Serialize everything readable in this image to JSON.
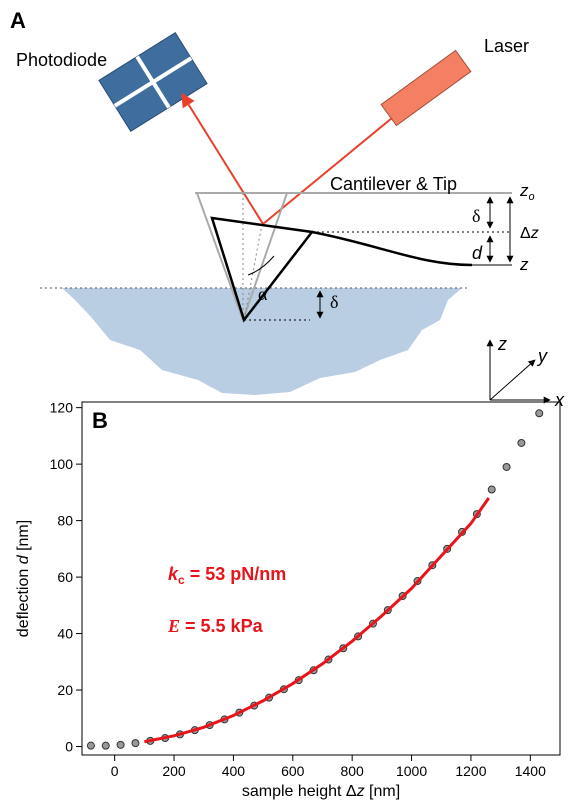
{
  "diagram": {
    "panel_label": "A",
    "photodiode": "Photodiode",
    "laser": "Laser",
    "cantilever": "Cantilever & Tip",
    "z0": {
      "var": "z",
      "sub": "o"
    },
    "delta_right": "δ",
    "delta_z": {
      "pre": "Δ",
      "var": "z"
    },
    "d": "d",
    "z": "z",
    "alpha": "α",
    "delta_sample": "δ",
    "axes": {
      "z": "z",
      "y": "y",
      "x": "x"
    }
  },
  "chart_data": {
    "type": "scatter",
    "panel_label": "B",
    "x_label": {
      "pre": "sample height Δ",
      "var": "z",
      "post": " [nm]"
    },
    "y_label": {
      "pre": "deflection ",
      "var": "d",
      "post": " [nm]"
    },
    "annotations": [
      {
        "symbol": "k",
        "sub": "c",
        "text": " = 53 pN/nm",
        "color": "#e8141c"
      },
      {
        "symbol": "E",
        "text": " = 5.5 kPa",
        "color": "#e8141c"
      }
    ],
    "xlim": [
      -110,
      1500
    ],
    "ylim": [
      -3,
      122
    ],
    "xticks": [
      0,
      200,
      400,
      600,
      800,
      1000,
      1200,
      1400
    ],
    "yticks": [
      0,
      20,
      40,
      60,
      80,
      100,
      120
    ],
    "series": [
      {
        "type": "points",
        "color": "#333333",
        "x": [
          -80,
          -30,
          20,
          70,
          120,
          170,
          220,
          270,
          320,
          370,
          420,
          470,
          520,
          570,
          620,
          670,
          720,
          770,
          820,
          870,
          920,
          970,
          1020,
          1070,
          1120,
          1170,
          1220,
          1270,
          1320,
          1370,
          1430
        ],
        "values": [
          0.3,
          0.3,
          0.6,
          1.2,
          2.0,
          3.0,
          4.3,
          5.8,
          7.6,
          9.6,
          12,
          14.5,
          17.3,
          20.3,
          23.5,
          27,
          30.8,
          34.8,
          39,
          43.5,
          48.3,
          53.3,
          58.6,
          64.2,
          70,
          76,
          82.3,
          91,
          99,
          107.5,
          118
        ]
      },
      {
        "type": "line",
        "color": "#e8141c",
        "x": [
          100,
          200,
          300,
          400,
          500,
          600,
          700,
          800,
          900,
          1000,
          1100,
          1200,
          1260
        ],
        "values": [
          1.7,
          3.8,
          6.8,
          11,
          16.2,
          22.3,
          29.3,
          37.3,
          46.3,
          56,
          67.5,
          79,
          88
        ]
      }
    ]
  }
}
